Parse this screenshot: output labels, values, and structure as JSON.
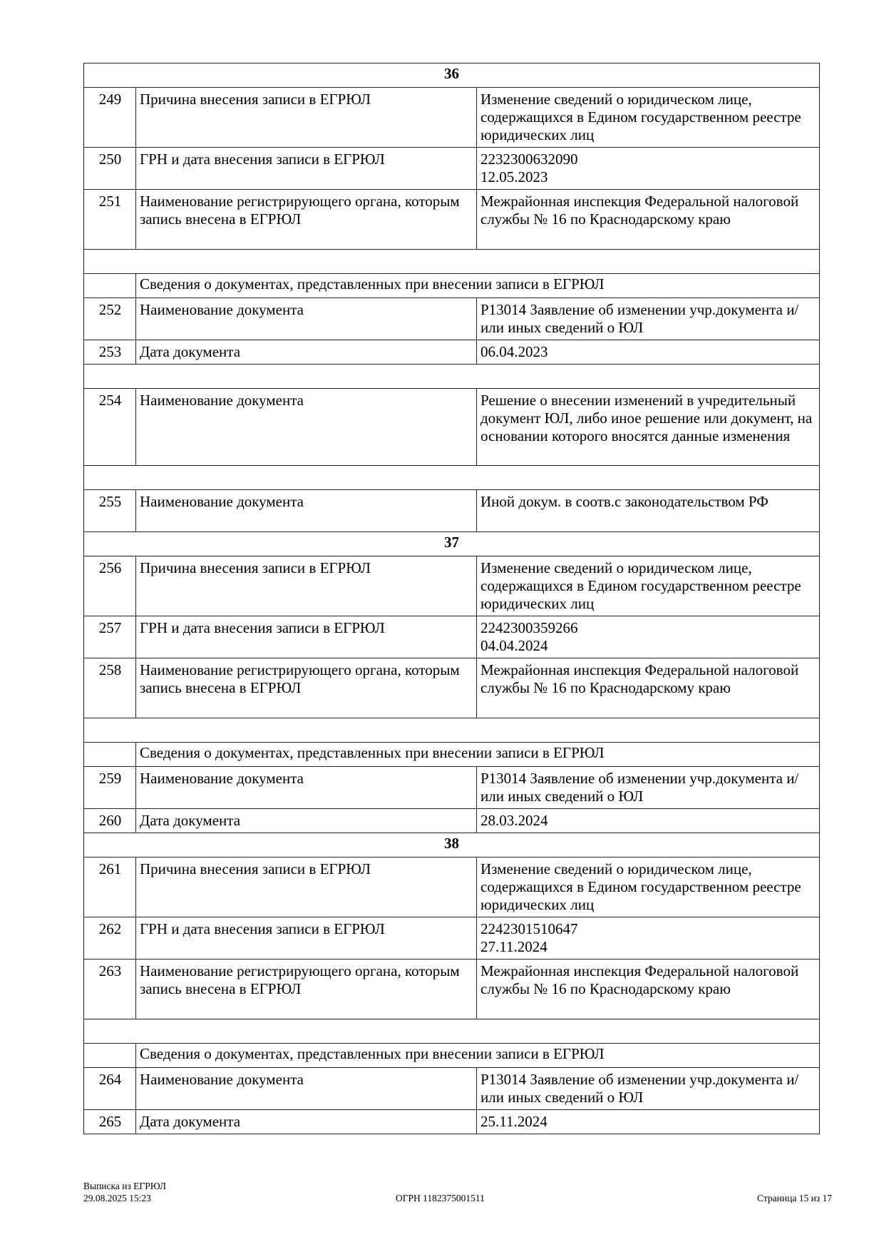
{
  "rows": [
    {
      "type": "section",
      "text": "36"
    },
    {
      "type": "row",
      "num": "249",
      "label": "Причина внесения записи в ЕГРЮЛ",
      "value": "Изменение сведений о юридическом лице, содержащихся в Едином государственном реестре юридических лиц",
      "lines": 3
    },
    {
      "type": "row",
      "num": "250",
      "label": "ГРН и дата внесения записи в ЕГРЮЛ",
      "value": "2232300632090\n12.05.2023",
      "lines": 2
    },
    {
      "type": "row",
      "num": "251",
      "label": "Наименование регистрирующего органа, которым запись внесена в ЕГРЮЛ",
      "value": "Межрайонная инспекция Федеральной налоговой службы № 16 по Краснодарскому краю",
      "lines": 3
    },
    {
      "type": "blank"
    },
    {
      "type": "subheader",
      "text": "Сведения о документах, представленных при внесении записи в ЕГРЮЛ"
    },
    {
      "type": "row",
      "num": "252",
      "label": "Наименование документа",
      "value": "Р13014 Заявление об изменении учр.документа и/или иных сведений о ЮЛ",
      "lines": 2
    },
    {
      "type": "row",
      "num": "253",
      "label": "Дата документа",
      "value": "06.04.2023",
      "lines": 1
    },
    {
      "type": "blank"
    },
    {
      "type": "row",
      "num": "254",
      "label": "Наименование документа",
      "value": "Решение о внесении изменений в учредительный документ ЮЛ, либо иное решение или документ, на основании которого вносятся данные изменения",
      "lines": 4
    },
    {
      "type": "blank"
    },
    {
      "type": "row",
      "num": "255",
      "label": "Наименование документа",
      "value": "Иной докум. в соотв.с законодательством РФ",
      "lines": 2
    },
    {
      "type": "section",
      "text": "37"
    },
    {
      "type": "row",
      "num": "256",
      "label": "Причина внесения записи в ЕГРЮЛ",
      "value": "Изменение сведений о юридическом лице, содержащихся в Едином государственном реестре юридических лиц",
      "lines": 3
    },
    {
      "type": "row",
      "num": "257",
      "label": "ГРН и дата внесения записи в ЕГРЮЛ",
      "value": "2242300359266\n04.04.2024",
      "lines": 2
    },
    {
      "type": "row",
      "num": "258",
      "label": "Наименование регистрирующего органа, которым запись внесена в ЕГРЮЛ",
      "value": "Межрайонная инспекция Федеральной налоговой службы № 16 по Краснодарскому краю",
      "lines": 3
    },
    {
      "type": "blank"
    },
    {
      "type": "subheader",
      "text": "Сведения о документах, представленных при внесении записи в ЕГРЮЛ"
    },
    {
      "type": "row",
      "num": "259",
      "label": "Наименование документа",
      "value": "Р13014 Заявление об изменении учр.документа и/или иных сведений о ЮЛ",
      "lines": 2
    },
    {
      "type": "row",
      "num": "260",
      "label": "Дата документа",
      "value": "28.03.2024",
      "lines": 1
    },
    {
      "type": "section",
      "text": "38"
    },
    {
      "type": "row",
      "num": "261",
      "label": "Причина внесения записи в ЕГРЮЛ",
      "value": "Изменение сведений о юридическом лице, содержащихся в Едином государственном реестре юридических лиц",
      "lines": 3
    },
    {
      "type": "row",
      "num": "262",
      "label": "ГРН и дата внесения записи в ЕГРЮЛ",
      "value": "2242301510647\n27.11.2024",
      "lines": 2
    },
    {
      "type": "row",
      "num": "263",
      "label": "Наименование регистрирующего органа, которым запись внесена в ЕГРЮЛ",
      "value": "Межрайонная инспекция Федеральной налоговой службы № 16 по Краснодарскому краю",
      "lines": 3
    },
    {
      "type": "blank"
    },
    {
      "type": "subheader",
      "text": "Сведения о документах, представленных при внесении записи в ЕГРЮЛ"
    },
    {
      "type": "row",
      "num": "264",
      "label": "Наименование документа",
      "value": "Р13014 Заявление об изменении учр.документа и/или иных сведений о ЮЛ",
      "lines": 2
    },
    {
      "type": "row",
      "num": "265",
      "label": "Дата документа",
      "value": "25.11.2024",
      "lines": 1
    }
  ],
  "footer": {
    "title": "Выписка из ЕГРЮЛ",
    "datetime": "29.08.2025 15:23",
    "ogrn": "ОГРН 1182375001511",
    "page": "Страница 15 из 17"
  }
}
